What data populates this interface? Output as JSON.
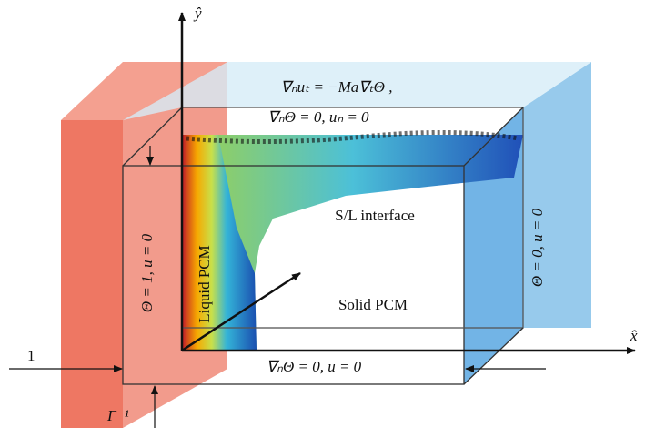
{
  "axes": {
    "y_label": "ŷ",
    "x_label": "x̂"
  },
  "boundary_conditions": {
    "top_line1": "∇ₙuₜ = −Ma∇ₜΘ ,",
    "top_line2": "∇ₙΘ = 0, uₙ = 0",
    "left": "Θ = 1,   u = 0",
    "right": "Θ = 0,   u = 0",
    "bottom": "∇ₙΘ = 0, u = 0"
  },
  "regions": {
    "liquid": "Liquid PCM",
    "interface": "S/L interface",
    "solid": "Solid PCM"
  },
  "dimensions": {
    "height": "1",
    "aspect": "Γ⁻¹"
  }
}
